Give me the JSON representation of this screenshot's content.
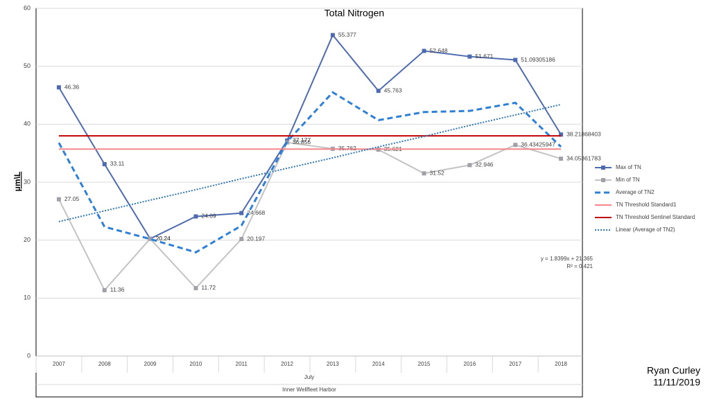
{
  "chart_data": {
    "type": "line",
    "title": "Total Nitrogen",
    "y_label": "μm\\L",
    "x_sublabel": "July",
    "x_label": "Inner Wellfleet Harbor",
    "categories": [
      "2007",
      "2008",
      "2009",
      "2010",
      "2011",
      "2012",
      "2013",
      "2014",
      "2015",
      "2016",
      "2017",
      "2018"
    ],
    "ylim": [
      0,
      60
    ],
    "yticks": [
      0,
      10,
      20,
      30,
      40,
      50,
      60
    ],
    "grid": true,
    "series": [
      {
        "name": "Max of TN",
        "color": "#4f6bb0",
        "line_style": "solid",
        "marker": "square",
        "data_labels": true,
        "values": [
          46.36,
          33.11,
          20.24,
          24.09,
          24.668,
          37.177,
          55.377,
          45.763,
          52.648,
          51.671,
          51.09305186,
          38.21868403
        ]
      },
      {
        "name": "Min of TN",
        "color": "#c3c3c3",
        "marker_color": "#a0a0a8",
        "line_style": "solid",
        "marker": "square",
        "data_labels": true,
        "values": [
          27.05,
          11.36,
          20.24,
          11.72,
          20.197,
          36.856,
          35.762,
          35.621,
          31.52,
          32.946,
          36.43425947,
          34.05361783
        ]
      },
      {
        "name": "Average of TN2",
        "color": "#2e7fd6",
        "line_style": "dashed",
        "values": [
          36.8,
          22.3,
          20.2,
          17.9,
          22.5,
          37.0,
          45.5,
          40.7,
          42.1,
          42.3,
          43.7,
          36.1
        ]
      },
      {
        "name": "TN Threshold Standard1",
        "color": "#f4868b",
        "line_style": "solid",
        "values": [
          35.7,
          35.7,
          35.7,
          35.7,
          35.7,
          35.7,
          35.7,
          35.7,
          35.7,
          35.7,
          35.7,
          35.7
        ]
      },
      {
        "name": "TN Threshold Sentinel Standard",
        "color": "#c00000",
        "line_style": "solid",
        "values": [
          38,
          38,
          38,
          38,
          38,
          38,
          38,
          38,
          38,
          38,
          38,
          38
        ]
      },
      {
        "name": "Linear (Average of TN2)",
        "color": "#2e75b6",
        "line_style": "dotted",
        "values": [
          23.2,
          25.05,
          26.9,
          28.7,
          30.6,
          32.4,
          34.2,
          36.1,
          37.9,
          39.8,
          41.6,
          43.4
        ]
      }
    ],
    "trend_equation": "y = 1.8399x + 21.365",
    "trend_r2": "R² = 0.421",
    "author": "Ryan Curley",
    "date": "11/11/2019"
  }
}
